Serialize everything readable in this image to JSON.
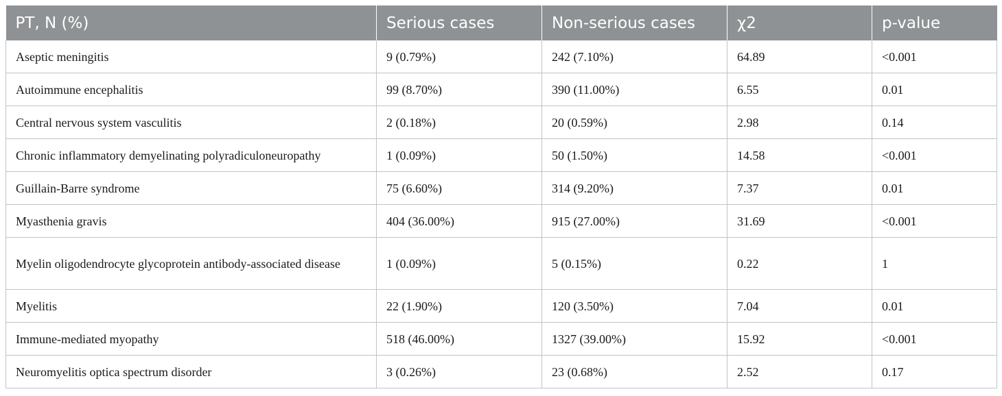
{
  "table": {
    "headers": [
      "PT, N (%)",
      "Serious cases",
      "Non-serious cases",
      "χ2",
      "p-value"
    ],
    "rows": [
      {
        "pt": "Aseptic meningitis",
        "serious": "9 (0.79%)",
        "non_serious": "242 (7.10%)",
        "chi2": "64.89",
        "p": "<0.001"
      },
      {
        "pt": "Autoimmune encephalitis",
        "serious": "99 (8.70%)",
        "non_serious": "390 (11.00%)",
        "chi2": "6.55",
        "p": "0.01"
      },
      {
        "pt": "Central nervous system vasculitis",
        "serious": "2 (0.18%)",
        "non_serious": "20 (0.59%)",
        "chi2": "2.98",
        "p": "0.14"
      },
      {
        "pt": "Chronic inflammatory demyelinating polyradiculoneuropathy",
        "serious": "1 (0.09%)",
        "non_serious": "50 (1.50%)",
        "chi2": "14.58",
        "p": "<0.001"
      },
      {
        "pt": "Guillain-Barre syndrome",
        "serious": "75 (6.60%)",
        "non_serious": "314 (9.20%)",
        "chi2": "7.37",
        "p": "0.01"
      },
      {
        "pt": "Myasthenia gravis",
        "serious": "404 (36.00%)",
        "non_serious": "915 (27.00%)",
        "chi2": "31.69",
        "p": "<0.001"
      },
      {
        "pt": "Myelin oligodendrocyte glycoprotein antibody-associated disease",
        "serious": "1 (0.09%)",
        "non_serious": "5 (0.15%)",
        "chi2": "0.22",
        "p": "1"
      },
      {
        "pt": "Myelitis",
        "serious": "22 (1.90%)",
        "non_serious": "120 (3.50%)",
        "chi2": "7.04",
        "p": "0.01"
      },
      {
        "pt": "Immune-mediated myopathy",
        "serious": "518 (46.00%)",
        "non_serious": "1327 (39.00%)",
        "chi2": "15.92",
        "p": "<0.001"
      },
      {
        "pt": "Neuromyelitis optica spectrum disorder",
        "serious": "3 (0.26%)",
        "non_serious": "23 (0.68%)",
        "chi2": "2.52",
        "p": "0.17"
      }
    ]
  },
  "colors": {
    "header_bg": "#8f9294",
    "header_text": "#ffffff",
    "grid": "#bfc3c6"
  }
}
